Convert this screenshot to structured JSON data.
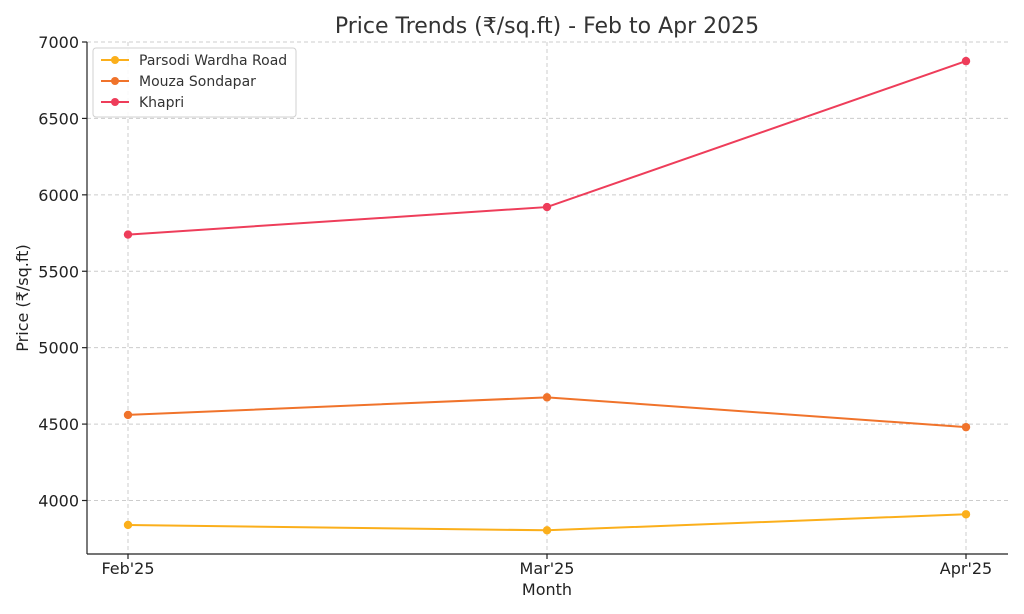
{
  "chart_data": {
    "type": "line",
    "title": "Price Trends (₹/sq.ft) - Feb to Apr 2025",
    "xlabel": "Month",
    "ylabel": "Price (₹/sq.ft)",
    "categories": [
      "Feb'25",
      "Mar'25",
      "Apr'25"
    ],
    "ylim": [
      3650,
      7000
    ],
    "yticks": [
      4000,
      4500,
      5000,
      5500,
      6000,
      6500,
      7000
    ],
    "grid": true,
    "legend": "top-left",
    "series": [
      {
        "name": "Parsodi Wardha Road",
        "color": "#FBAF1B",
        "values": [
          3840,
          3805,
          3910
        ]
      },
      {
        "name": "Mouza Sondapar",
        "color": "#F0732B",
        "values": [
          4560,
          4675,
          4480
        ]
      },
      {
        "name": "Khapri",
        "color": "#EE3D5A",
        "values": [
          5740,
          5920,
          6875
        ]
      }
    ]
  }
}
